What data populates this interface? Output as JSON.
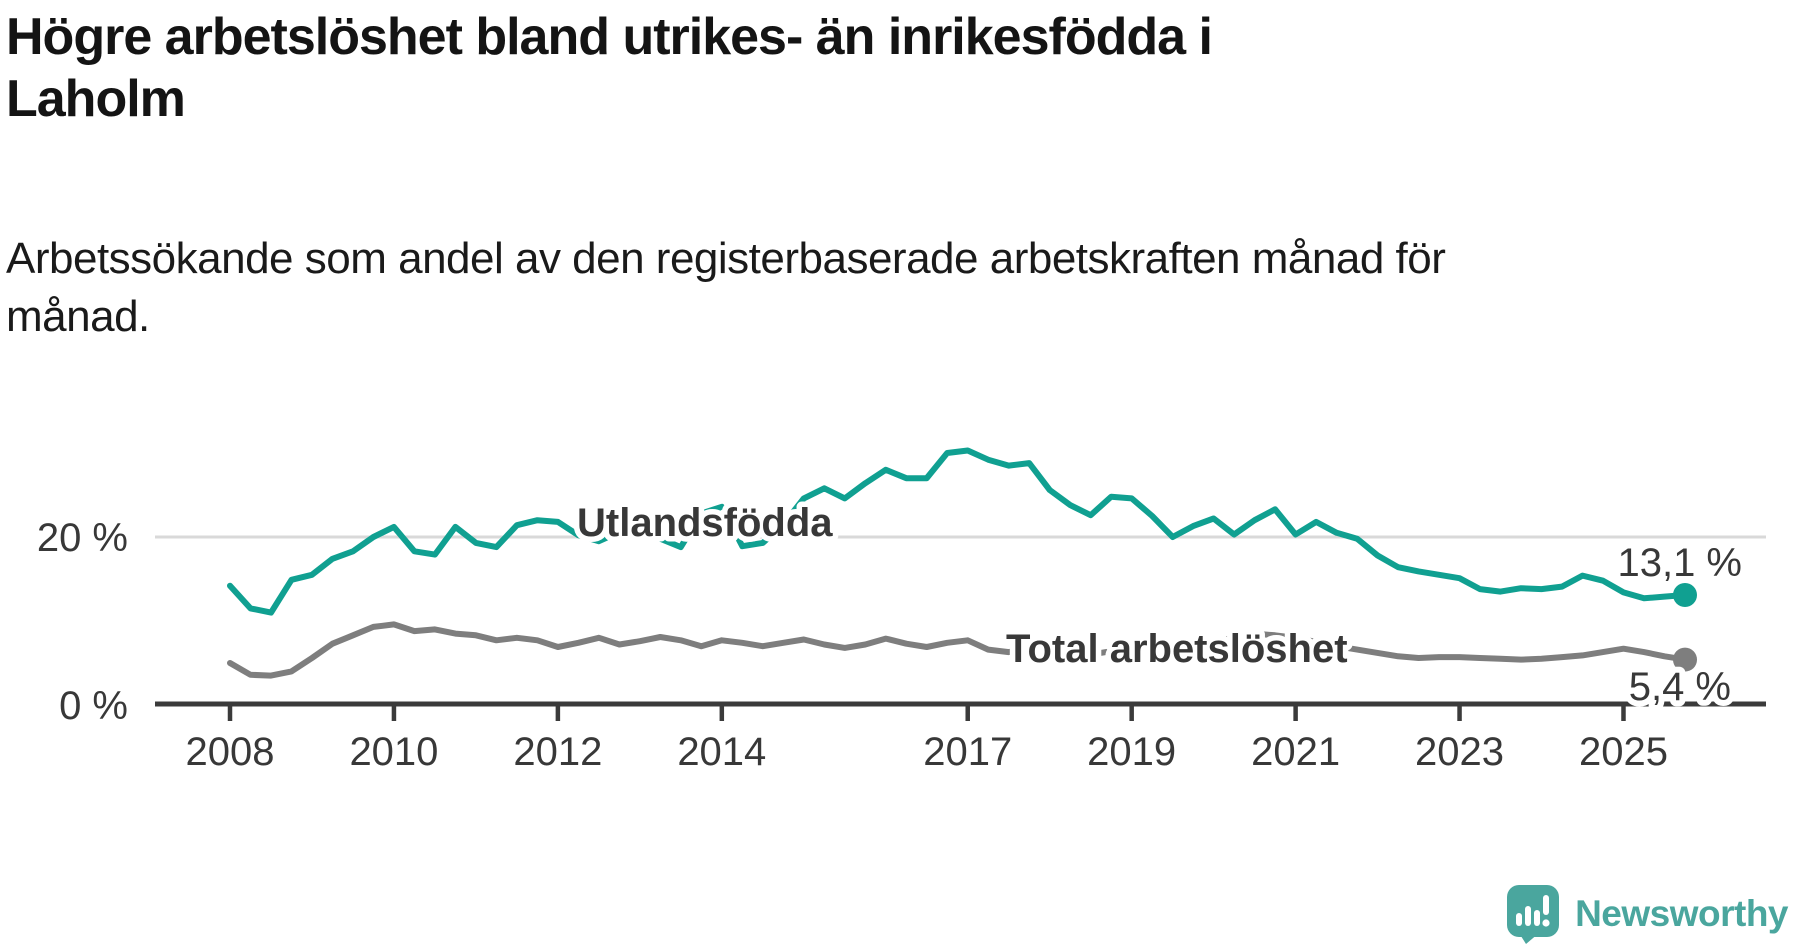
{
  "header": {
    "title_lines": [
      "Högre arbetslöshet bland utrikes- än inrikesfödda i",
      "Laholm"
    ],
    "subtitle_lines": [
      "Arbetssökande som andel av den registerbaserade arbetskraften månad för",
      "månad."
    ]
  },
  "chart_data": {
    "type": "line",
    "title": "Högre arbetslöshet bland utrikes- än inrikesfödda i Laholm",
    "subtitle": "Arbetssökande som andel av den registerbaserade arbetskraften månad för månad.",
    "x_ticks": [
      "2008",
      "2010",
      "2012",
      "2014",
      "2017",
      "2019",
      "2021",
      "2023",
      "2025"
    ],
    "x_tick_years": [
      2008,
      2010,
      2012,
      2014,
      2017,
      2019,
      2021,
      2023,
      2025
    ],
    "x_range": [
      2008,
      2025.75
    ],
    "y_ticks": [
      {
        "value": 0,
        "label": "0 %"
      },
      {
        "value": 20,
        "label": "20 %"
      }
    ],
    "y_range": [
      0,
      33
    ],
    "grid": "single horizontal gridline at 20 %, x axis at 0 %",
    "legend": "inline labels placed on the lines",
    "series_start_year": 2008.0,
    "series_step_years": 0.25,
    "series": [
      {
        "name": "Utlandsfödda",
        "color": "#10A091",
        "end_value": 13.1,
        "end_value_label": "13,1 %",
        "values": [
          14.2,
          11.5,
          11.0,
          14.9,
          15.5,
          17.4,
          18.3,
          20.0,
          21.2,
          18.3,
          17.9,
          21.2,
          19.3,
          18.8,
          21.4,
          22.0,
          21.8,
          20.2,
          19.5,
          20.6,
          21.4,
          19.8,
          18.8,
          22.8,
          23.6,
          18.9,
          19.3,
          21.5,
          24.6,
          25.8,
          24.6,
          26.4,
          28.0,
          27.0,
          27.0,
          30.0,
          30.3,
          29.2,
          28.5,
          28.8,
          25.6,
          23.8,
          22.6,
          24.8,
          24.6,
          22.5,
          20.0,
          21.3,
          22.2,
          20.3,
          22.0,
          23.3,
          20.3,
          21.8,
          20.5,
          19.8,
          17.8,
          16.4,
          15.9,
          15.5,
          15.1,
          13.8,
          13.5,
          13.9,
          13.8,
          14.1,
          15.4,
          14.8,
          13.4,
          12.7,
          12.9,
          13.1
        ]
      },
      {
        "name": "Total arbetslöshet",
        "color": "#7E7E7E",
        "end_value": 5.4,
        "end_value_label": "5,4 %",
        "values": [
          5.0,
          3.6,
          3.5,
          4.0,
          5.6,
          7.3,
          8.3,
          9.3,
          9.6,
          8.8,
          9.0,
          8.5,
          8.3,
          7.7,
          8.0,
          7.7,
          6.9,
          7.4,
          8.0,
          7.2,
          7.6,
          8.1,
          7.7,
          7.0,
          7.7,
          7.4,
          7.0,
          7.4,
          7.8,
          7.2,
          6.8,
          7.2,
          7.9,
          7.3,
          6.9,
          7.4,
          7.7,
          6.6,
          6.3,
          6.7,
          7.0,
          6.4,
          6.0,
          6.4,
          6.8,
          6.5,
          6.2,
          6.6,
          7.1,
          8.2,
          8.5,
          8.3,
          8.0,
          7.5,
          7.0,
          6.6,
          6.2,
          5.8,
          5.6,
          5.7,
          5.7,
          5.6,
          5.5,
          5.4,
          5.5,
          5.7,
          5.9,
          6.3,
          6.7,
          6.3,
          5.8,
          5.4
        ]
      }
    ]
  },
  "branding": {
    "logo_text": "Newsworthy",
    "logo_color": "#4AA69E"
  },
  "colors": {
    "background": "#FFFFFF",
    "axis": "#3B3B3B",
    "gridline": "#D9D9D9",
    "tick_label": "#383838",
    "annotation": "#191919",
    "series_teal": "#10A091",
    "series_gray": "#7E7E7E"
  }
}
